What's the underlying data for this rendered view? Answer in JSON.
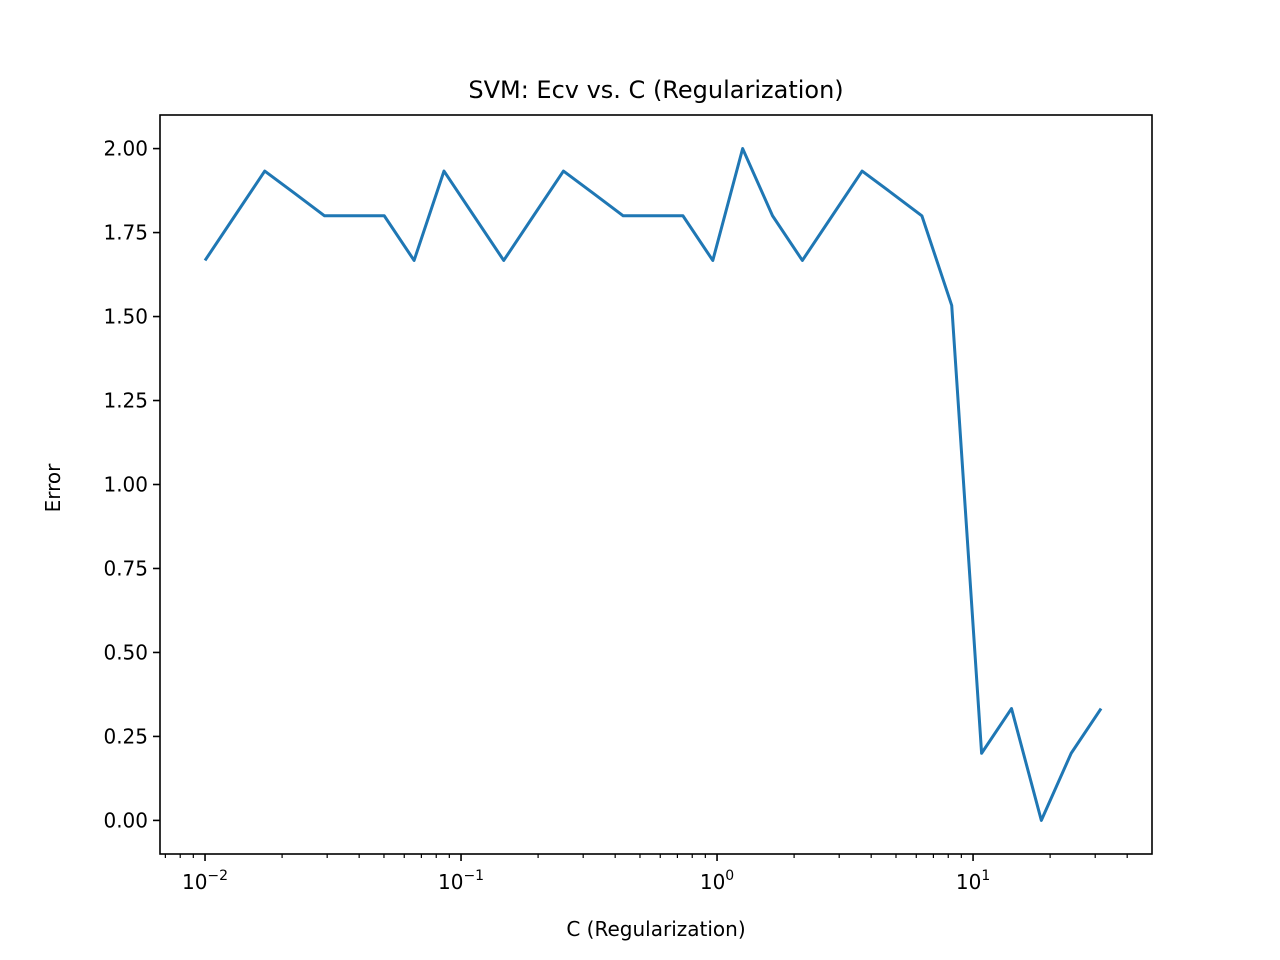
{
  "chart_data": {
    "type": "line",
    "title": "SVM: Ecv vs. C (Regularization)",
    "x_label": "C (Regularization)",
    "y_label": "Error",
    "x": [
      0.01,
      0.01308,
      0.01711,
      0.02239,
      0.02929,
      0.03831,
      0.05012,
      0.06556,
      0.08577,
      0.1122,
      0.1468,
      0.192,
      0.2512,
      0.3286,
      0.4299,
      0.5623,
      0.7356,
      0.9624,
      1.259,
      1.647,
      2.154,
      2.818,
      3.687,
      4.823,
      6.31,
      8.254,
      10.8,
      14.13,
      18.48,
      24.17,
      31.62
    ],
    "series": [
      {
        "color": "#1f77b4",
        "values": [
          1.667,
          1.8,
          1.933,
          1.867,
          1.8,
          1.8,
          1.8,
          1.667,
          1.933,
          1.8,
          1.667,
          1.8,
          1.933,
          1.867,
          1.8,
          1.8,
          1.8,
          1.667,
          2.0,
          1.8,
          1.667,
          1.8,
          1.933,
          1.867,
          1.8,
          1.533,
          0.2,
          0.333,
          0.0,
          0.2,
          0.333
        ]
      }
    ],
    "xscale": "log",
    "xlim": [
      0.00667,
      50
    ],
    "xticks": [
      {
        "value": 0.01,
        "label": "10−2"
      },
      {
        "value": 0.1,
        "label": "10−1"
      },
      {
        "value": 1,
        "label": "100"
      },
      {
        "value": 10,
        "label": "101"
      }
    ],
    "xminorticks": [
      0.007,
      0.008,
      0.009,
      0.02,
      0.03,
      0.04,
      0.05,
      0.06,
      0.07,
      0.08,
      0.09,
      0.2,
      0.3,
      0.4,
      0.5,
      0.6,
      0.7,
      0.8,
      0.9,
      2,
      3,
      4,
      5,
      6,
      7,
      8,
      9,
      20,
      30,
      40
    ],
    "ylim": [
      -0.1,
      2.1
    ],
    "yticks": [
      {
        "value": 0,
        "label": "0.00"
      },
      {
        "value": 0.25,
        "label": "0.25"
      },
      {
        "value": 0.5,
        "label": "0.50"
      },
      {
        "value": 0.75,
        "label": "0.75"
      },
      {
        "value": 1,
        "label": "1.00"
      },
      {
        "value": 1.25,
        "label": "1.25"
      },
      {
        "value": 1.5,
        "label": "1.50"
      },
      {
        "value": 1.75,
        "label": "1.75"
      },
      {
        "value": 2,
        "label": "2.00"
      }
    ],
    "grid": false
  }
}
